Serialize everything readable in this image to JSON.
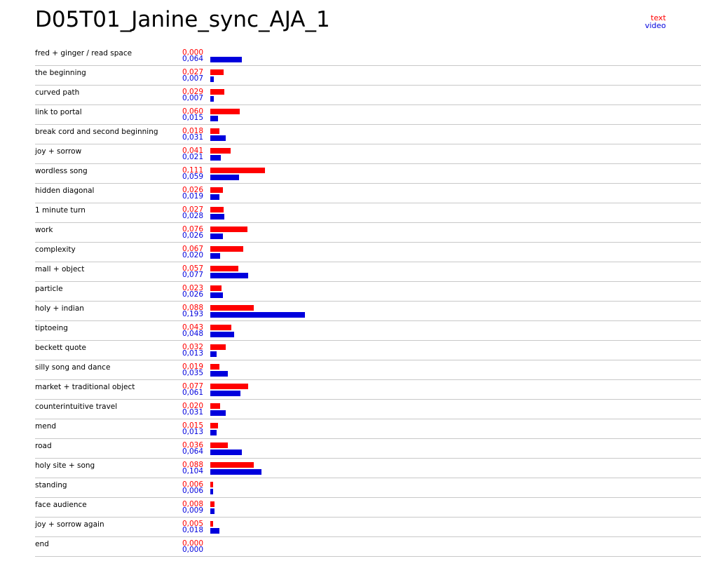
{
  "title": "D05T01_Janine_sync_AJA_1",
  "colors": {
    "text": "#ff0000",
    "video": "#0000dd"
  },
  "chart_data": {
    "type": "bar",
    "orientation": "horizontal",
    "legend": {
      "position": "top-right",
      "entries": [
        "text",
        "video"
      ]
    },
    "categories": [
      "fred + ginger / read space",
      "the beginning",
      "curved path",
      "link to portal",
      "break cord and second beginning",
      "joy + sorrow",
      "wordless song",
      "hidden diagonal",
      "1 minute turn",
      "work",
      "complexity",
      "mall + object",
      "particle",
      "holy + indian",
      "tiptoeing",
      "beckett quote",
      "silly song and dance",
      "market + traditional object",
      "counterintuitive travel",
      "mend",
      "road",
      "holy site + song",
      "standing",
      "face audience",
      "joy + sorrow again",
      "end"
    ],
    "series": [
      {
        "name": "text",
        "color": "#ff0000",
        "values": [
          0.0,
          0.027,
          0.029,
          0.06,
          0.018,
          0.041,
          0.111,
          0.026,
          0.027,
          0.076,
          0.067,
          0.057,
          0.023,
          0.088,
          0.043,
          0.032,
          0.019,
          0.077,
          0.02,
          0.015,
          0.036,
          0.088,
          0.006,
          0.008,
          0.005,
          0.0
        ],
        "labels": [
          "0,000",
          "0,027",
          "0,029",
          "0,060",
          "0,018",
          "0,041",
          "0,111",
          "0,026",
          "0,027",
          "0,076",
          "0,067",
          "0,057",
          "0,023",
          "0,088",
          "0,043",
          "0,032",
          "0,019",
          "0,077",
          "0,020",
          "0,015",
          "0,036",
          "0,088",
          "0,006",
          "0,008",
          "0,005",
          "0,000"
        ]
      },
      {
        "name": "video",
        "color": "#0000dd",
        "values": [
          0.064,
          0.007,
          0.007,
          0.015,
          0.031,
          0.021,
          0.059,
          0.019,
          0.028,
          0.026,
          0.02,
          0.077,
          0.026,
          0.193,
          0.048,
          0.013,
          0.035,
          0.061,
          0.031,
          0.013,
          0.064,
          0.104,
          0.006,
          0.009,
          0.018,
          0.0
        ],
        "labels": [
          "0,064",
          "0,007",
          "0,007",
          "0,015",
          "0,031",
          "0,021",
          "0,059",
          "0,019",
          "0,028",
          "0,026",
          "0,020",
          "0,077",
          "0,026",
          "0,193",
          "0,048",
          "0,013",
          "0,035",
          "0,061",
          "0,031",
          "0,013",
          "0,064",
          "0,104",
          "0,006",
          "0,009",
          "0,018",
          "0,000"
        ]
      }
    ]
  }
}
